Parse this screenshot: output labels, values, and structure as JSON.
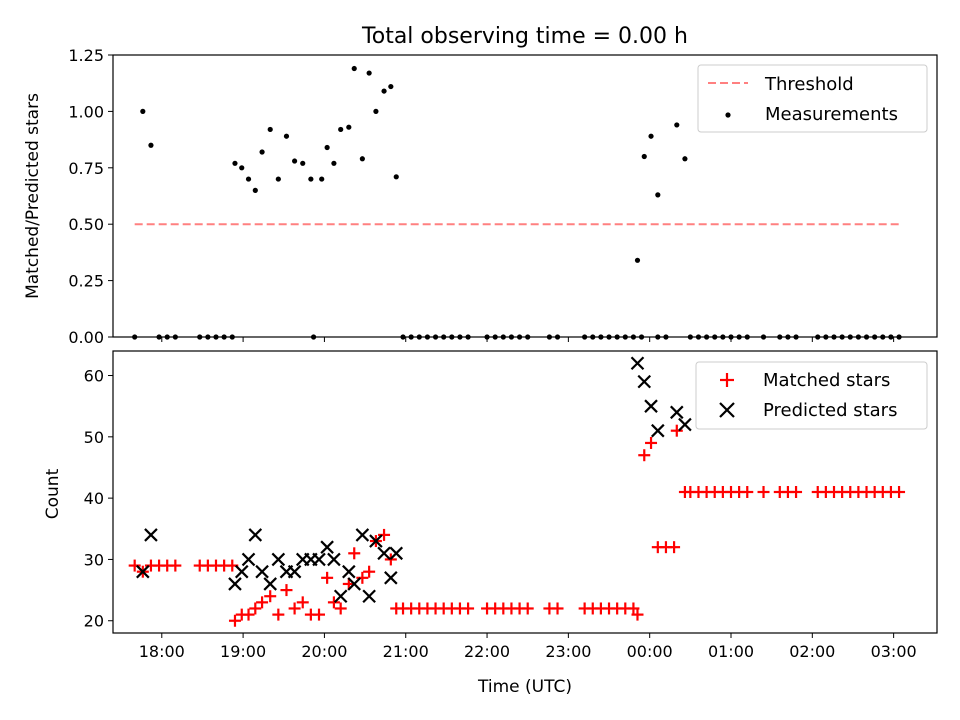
{
  "chart_data": [
    {
      "type": "scatter",
      "title": "Total observing time = 0.00 h",
      "ylabel": "Matched/Predicted stars",
      "xlabel": "",
      "xlim": [
        "17:24",
        "03:32"
      ],
      "ylim": [
        0,
        1.25
      ],
      "yticks": [
        "0.00",
        "0.25",
        "0.50",
        "0.75",
        "1.00",
        "1.25"
      ],
      "legend": {
        "placement": "top-right",
        "entries": [
          "Threshold",
          "Measurements"
        ]
      },
      "threshold": {
        "name": "Threshold",
        "x": [
          "17:40",
          "03:04"
        ],
        "y": 0.5,
        "color": "#ff8080",
        "style": "dashed"
      },
      "series": [
        {
          "name": "Measurements",
          "color": "#000000",
          "points": [
            [
              "17:40",
              0
            ],
            [
              "17:46",
              1.0
            ],
            [
              "17:52",
              0.85
            ],
            [
              "17:58",
              0
            ],
            [
              "18:04",
              0
            ],
            [
              "18:10",
              0
            ],
            [
              "18:28",
              0
            ],
            [
              "18:34",
              0
            ],
            [
              "18:40",
              0
            ],
            [
              "18:46",
              0
            ],
            [
              "18:52",
              0
            ],
            [
              "18:54",
              0.77
            ],
            [
              "18:59",
              0.75
            ],
            [
              "19:04",
              0.7
            ],
            [
              "19:09",
              0.65
            ],
            [
              "19:14",
              0.82
            ],
            [
              "19:20",
              0.92
            ],
            [
              "19:26",
              0.7
            ],
            [
              "19:32",
              0.89
            ],
            [
              "19:38",
              0.78
            ],
            [
              "19:44",
              0.77
            ],
            [
              "19:50",
              0.7
            ],
            [
              "19:58",
              0.7
            ],
            [
              "20:02",
              0.84
            ],
            [
              "20:07",
              0.77
            ],
            [
              "20:12",
              0.92
            ],
            [
              "20:18",
              0.93
            ],
            [
              "20:22",
              1.19
            ],
            [
              "20:28",
              0.79
            ],
            [
              "20:33",
              1.17
            ],
            [
              "20:38",
              1.0
            ],
            [
              "20:44",
              1.09
            ],
            [
              "20:49",
              1.11
            ],
            [
              "20:53",
              0.71
            ],
            [
              "19:52",
              0
            ],
            [
              "20:58",
              0
            ],
            [
              "21:04",
              0
            ],
            [
              "21:10",
              0
            ],
            [
              "21:16",
              0
            ],
            [
              "21:22",
              0
            ],
            [
              "21:28",
              0
            ],
            [
              "21:34",
              0
            ],
            [
              "21:40",
              0
            ],
            [
              "21:46",
              0
            ],
            [
              "22:00",
              0
            ],
            [
              "22:06",
              0
            ],
            [
              "22:12",
              0
            ],
            [
              "22:18",
              0
            ],
            [
              "22:24",
              0
            ],
            [
              "22:30",
              0
            ],
            [
              "22:46",
              0
            ],
            [
              "22:52",
              0
            ],
            [
              "23:12",
              0
            ],
            [
              "23:18",
              0
            ],
            [
              "23:24",
              0
            ],
            [
              "23:30",
              0
            ],
            [
              "23:36",
              0
            ],
            [
              "23:42",
              0
            ],
            [
              "23:48",
              0
            ],
            [
              "23:54",
              0
            ],
            [
              "00:06",
              0
            ],
            [
              "00:12",
              0
            ],
            [
              "23:51",
              0.34
            ],
            [
              "23:56",
              0.8
            ],
            [
              "00:01",
              0.89
            ],
            [
              "00:06",
              0.63
            ],
            [
              "00:20",
              0.94
            ],
            [
              "00:26",
              0.79
            ],
            [
              "00:30",
              0
            ],
            [
              "00:36",
              0
            ],
            [
              "00:42",
              0
            ],
            [
              "00:48",
              0
            ],
            [
              "00:54",
              0
            ],
            [
              "01:00",
              0
            ],
            [
              "01:06",
              0
            ],
            [
              "01:12",
              0
            ],
            [
              "01:24",
              0
            ],
            [
              "01:36",
              0
            ],
            [
              "01:42",
              0
            ],
            [
              "01:48",
              0
            ],
            [
              "02:04",
              0
            ],
            [
              "02:10",
              0
            ],
            [
              "02:16",
              0
            ],
            [
              "02:22",
              0
            ],
            [
              "02:28",
              0
            ],
            [
              "02:34",
              0
            ],
            [
              "02:40",
              0
            ],
            [
              "02:46",
              0
            ],
            [
              "02:52",
              0
            ],
            [
              "02:58",
              0
            ],
            [
              "03:04",
              0
            ]
          ]
        }
      ]
    },
    {
      "type": "scatter",
      "title": "",
      "ylabel": "Count",
      "xlabel": "Time (UTC)",
      "xlim": [
        "17:24",
        "03:32"
      ],
      "ylim": [
        18,
        64
      ],
      "yticks": [
        "20",
        "30",
        "40",
        "50",
        "60"
      ],
      "xticks": [
        "18:00",
        "19:00",
        "20:00",
        "21:00",
        "22:00",
        "23:00",
        "00:00",
        "01:00",
        "02:00",
        "03:00"
      ],
      "legend": {
        "placement": "top-right",
        "entries": [
          "Matched stars",
          "Predicted stars"
        ]
      },
      "series": [
        {
          "name": "Matched stars",
          "color": "#ff0000",
          "marker": "plus",
          "points": [
            [
              "17:40",
              29
            ],
            [
              "17:46",
              28
            ],
            [
              "17:52",
              29
            ],
            [
              "17:58",
              29
            ],
            [
              "18:04",
              29
            ],
            [
              "18:10",
              29
            ],
            [
              "18:28",
              29
            ],
            [
              "18:34",
              29
            ],
            [
              "18:40",
              29
            ],
            [
              "18:46",
              29
            ],
            [
              "18:52",
              29
            ],
            [
              "18:54",
              20
            ],
            [
              "18:59",
              21
            ],
            [
              "19:04",
              21
            ],
            [
              "19:09",
              22
            ],
            [
              "19:14",
              23
            ],
            [
              "19:20",
              24
            ],
            [
              "19:26",
              21
            ],
            [
              "19:32",
              25
            ],
            [
              "19:38",
              22
            ],
            [
              "19:44",
              23
            ],
            [
              "19:50",
              21
            ],
            [
              "19:56",
              21
            ],
            [
              "20:02",
              27
            ],
            [
              "20:07",
              23
            ],
            [
              "20:12",
              22
            ],
            [
              "20:18",
              26
            ],
            [
              "20:22",
              31
            ],
            [
              "20:28",
              27
            ],
            [
              "20:33",
              28
            ],
            [
              "20:38",
              33
            ],
            [
              "20:44",
              34
            ],
            [
              "20:49",
              30
            ],
            [
              "20:53",
              22
            ],
            [
              "20:58",
              22
            ],
            [
              "21:04",
              22
            ],
            [
              "21:10",
              22
            ],
            [
              "21:16",
              22
            ],
            [
              "21:22",
              22
            ],
            [
              "21:28",
              22
            ],
            [
              "21:34",
              22
            ],
            [
              "21:40",
              22
            ],
            [
              "21:46",
              22
            ],
            [
              "22:00",
              22
            ],
            [
              "22:06",
              22
            ],
            [
              "22:12",
              22
            ],
            [
              "22:18",
              22
            ],
            [
              "22:24",
              22
            ],
            [
              "22:30",
              22
            ],
            [
              "22:46",
              22
            ],
            [
              "22:52",
              22
            ],
            [
              "23:12",
              22
            ],
            [
              "23:18",
              22
            ],
            [
              "23:24",
              22
            ],
            [
              "23:30",
              22
            ],
            [
              "23:36",
              22
            ],
            [
              "23:42",
              22
            ],
            [
              "23:48",
              22
            ],
            [
              "23:51",
              21
            ],
            [
              "23:56",
              47
            ],
            [
              "00:01",
              49
            ],
            [
              "00:06",
              32
            ],
            [
              "00:12",
              32
            ],
            [
              "00:18",
              32
            ],
            [
              "00:20",
              51
            ],
            [
              "00:26",
              41
            ],
            [
              "00:30",
              41
            ],
            [
              "00:36",
              41
            ],
            [
              "00:42",
              41
            ],
            [
              "00:48",
              41
            ],
            [
              "00:54",
              41
            ],
            [
              "01:00",
              41
            ],
            [
              "01:06",
              41
            ],
            [
              "01:12",
              41
            ],
            [
              "01:24",
              41
            ],
            [
              "01:36",
              41
            ],
            [
              "01:42",
              41
            ],
            [
              "01:48",
              41
            ],
            [
              "02:04",
              41
            ],
            [
              "02:10",
              41
            ],
            [
              "02:16",
              41
            ],
            [
              "02:22",
              41
            ],
            [
              "02:28",
              41
            ],
            [
              "02:34",
              41
            ],
            [
              "02:40",
              41
            ],
            [
              "02:46",
              41
            ],
            [
              "02:52",
              41
            ],
            [
              "02:58",
              41
            ],
            [
              "03:04",
              41
            ]
          ]
        },
        {
          "name": "Predicted stars",
          "color": "#000000",
          "marker": "x",
          "points": [
            [
              "17:46",
              28
            ],
            [
              "17:52",
              34
            ],
            [
              "18:54",
              26
            ],
            [
              "18:59",
              28
            ],
            [
              "19:04",
              30
            ],
            [
              "19:09",
              34
            ],
            [
              "19:14",
              28
            ],
            [
              "19:20",
              26
            ],
            [
              "19:26",
              30
            ],
            [
              "19:32",
              28
            ],
            [
              "19:38",
              28
            ],
            [
              "19:44",
              30
            ],
            [
              "19:50",
              30
            ],
            [
              "19:56",
              30
            ],
            [
              "20:02",
              32
            ],
            [
              "20:07",
              30
            ],
            [
              "20:12",
              24
            ],
            [
              "20:18",
              28
            ],
            [
              "20:22",
              26
            ],
            [
              "20:28",
              34
            ],
            [
              "20:33",
              24
            ],
            [
              "20:38",
              33
            ],
            [
              "20:44",
              31
            ],
            [
              "20:49",
              27
            ],
            [
              "20:53",
              31
            ],
            [
              "23:51",
              62
            ],
            [
              "23:56",
              59
            ],
            [
              "00:01",
              55
            ],
            [
              "00:06",
              51
            ],
            [
              "00:20",
              54
            ],
            [
              "00:26",
              52
            ]
          ]
        }
      ]
    }
  ]
}
